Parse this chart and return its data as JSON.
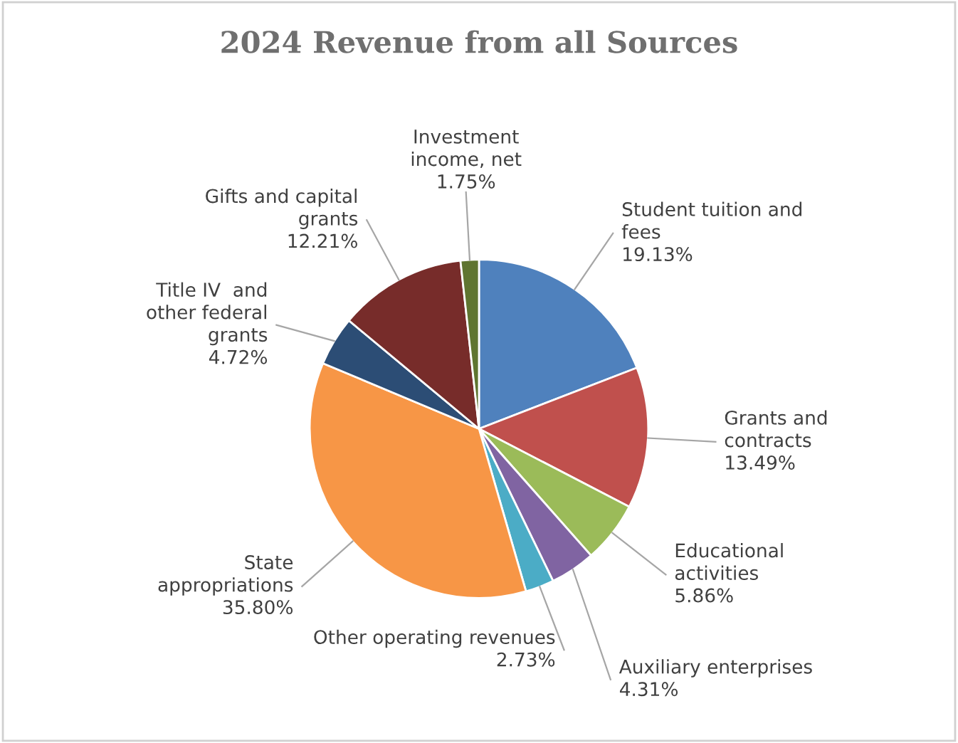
{
  "chart_data": {
    "type": "pie",
    "title": "2024 Revenue from all Sources",
    "categories": [
      "Student tuition and\nfees",
      "Grants and\ncontracts",
      "Educational\nactivities",
      "Auxiliary enterprises",
      "Other operating revenues",
      "State\nappropriations",
      "Title IV  and\nother federal\ngrants",
      "Gifts and capital\ngrants",
      "Investment\nincome, net"
    ],
    "values": [
      19.13,
      13.49,
      5.86,
      4.31,
      2.73,
      35.8,
      4.72,
      12.21,
      1.75
    ],
    "colors": [
      "#4f81bd",
      "#c0504d",
      "#9bbb59",
      "#8064a2",
      "#4bacc6",
      "#f79646",
      "#2c4d75",
      "#772c2a",
      "#5f7530"
    ],
    "value_labels": [
      "19.13%",
      "13.49%",
      "5.86%",
      "4.31%",
      "2.73%",
      "35.80%",
      "4.72%",
      "12.21%",
      "1.75%"
    ]
  }
}
